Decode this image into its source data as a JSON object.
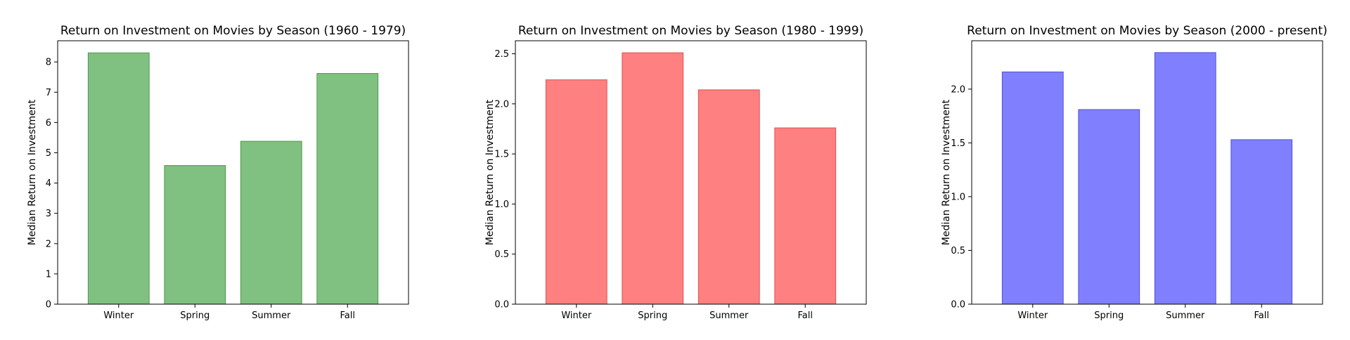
{
  "chart_data": [
    {
      "type": "bar",
      "title": "Return on Investment on Movies by Season  (1960 - 1979)",
      "xlabel": "",
      "ylabel": "Median Return on Investment",
      "categories": [
        "Winter",
        "Spring",
        "Summer",
        "Fall"
      ],
      "values": [
        8.3,
        4.58,
        5.38,
        7.62
      ],
      "ylim": [
        0,
        8.7
      ],
      "yticks": [
        0,
        1,
        2,
        3,
        4,
        5,
        6,
        7,
        8
      ],
      "ytick_labels": [
        "0",
        "1",
        "2",
        "3",
        "4",
        "5",
        "6",
        "7",
        "8"
      ],
      "color": "#80c080",
      "edge_color": "#4c9a4c",
      "grid": false
    },
    {
      "type": "bar",
      "title": "Return on Investment on Movies by Season  (1980 - 1999)",
      "xlabel": "",
      "ylabel": "Median Return on Investment",
      "categories": [
        "Winter",
        "Spring",
        "Summer",
        "Fall"
      ],
      "values": [
        2.24,
        2.51,
        2.14,
        1.76
      ],
      "ylim": [
        0,
        2.63
      ],
      "yticks": [
        0,
        0.5,
        1,
        1.5,
        2,
        2.5
      ],
      "ytick_labels": [
        "0.0",
        "0.5",
        "1.0",
        "1.5",
        "2.0",
        "2.5"
      ],
      "color": "#ff8080",
      "edge_color": "#e05050",
      "grid": false
    },
    {
      "type": "bar",
      "title": "Return on Investment on Movies by Season  (2000 - present)",
      "xlabel": "",
      "ylabel": "Median Return on Investment",
      "categories": [
        "Winter",
        "Spring",
        "Summer",
        "Fall"
      ],
      "values": [
        2.16,
        1.81,
        2.34,
        1.53
      ],
      "ylim": [
        0,
        2.45
      ],
      "yticks": [
        0,
        0.5,
        1,
        1.5,
        2
      ],
      "ytick_labels": [
        "0.0",
        "0.5",
        "1.0",
        "1.5",
        "2.0"
      ],
      "color": "#8080ff",
      "edge_color": "#5050d0",
      "grid": false
    }
  ]
}
